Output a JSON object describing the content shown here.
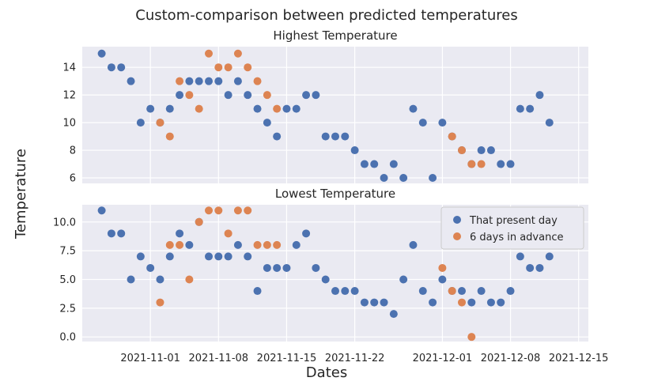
{
  "chart_data": {
    "type": "scatter",
    "title": "Custom-comparison between predicted temperatures",
    "xlabel": "Dates",
    "ylabel": "Temperature",
    "colors": {
      "present": "#4c72b0",
      "advance": "#dd8452",
      "background": "#eaeaf2",
      "grid": "#ffffff"
    },
    "legend": {
      "position": "top-right",
      "entries": [
        "That present day",
        "6 days in advance"
      ]
    },
    "x_ticks": [
      "2021-11-01",
      "2021-11-08",
      "2021-11-15",
      "2021-11-22",
      "2021-12-01",
      "2021-12-08",
      "2021-12-15"
    ],
    "x_range": [
      "2021-10-25",
      "2021-12-16"
    ],
    "panels": [
      {
        "title": "Highest Temperature",
        "ylim": [
          5.6,
          15.5
        ],
        "yticks": [
          "6",
          "8",
          "10",
          "12",
          "14"
        ],
        "series": [
          {
            "name": "That present day",
            "points": [
              [
                "2021-10-27",
                15
              ],
              [
                "2021-10-28",
                14
              ],
              [
                "2021-10-29",
                14
              ],
              [
                "2021-10-30",
                13
              ],
              [
                "2021-10-31",
                10
              ],
              [
                "2021-11-01",
                11
              ],
              [
                "2021-11-02",
                10
              ],
              [
                "2021-11-03",
                11
              ],
              [
                "2021-11-04",
                12
              ],
              [
                "2021-11-05",
                13
              ],
              [
                "2021-11-06",
                13
              ],
              [
                "2021-11-07",
                13
              ],
              [
                "2021-11-08",
                13
              ],
              [
                "2021-11-09",
                12
              ],
              [
                "2021-11-10",
                13
              ],
              [
                "2021-11-11",
                12
              ],
              [
                "2021-11-12",
                11
              ],
              [
                "2021-11-13",
                10
              ],
              [
                "2021-11-14",
                9
              ],
              [
                "2021-11-15",
                11
              ],
              [
                "2021-11-16",
                11
              ],
              [
                "2021-11-17",
                12
              ],
              [
                "2021-11-18",
                12
              ],
              [
                "2021-11-19",
                9
              ],
              [
                "2021-11-20",
                9
              ],
              [
                "2021-11-21",
                9
              ],
              [
                "2021-11-22",
                8
              ],
              [
                "2021-11-23",
                7
              ],
              [
                "2021-11-24",
                7
              ],
              [
                "2021-11-25",
                6
              ],
              [
                "2021-11-26",
                7
              ],
              [
                "2021-11-27",
                6
              ],
              [
                "2021-11-28",
                11
              ],
              [
                "2021-11-29",
                10
              ],
              [
                "2021-11-30",
                6
              ],
              [
                "2021-12-01",
                10
              ],
              [
                "2021-12-02",
                9
              ],
              [
                "2021-12-03",
                8
              ],
              [
                "2021-12-04",
                7
              ],
              [
                "2021-12-05",
                8
              ],
              [
                "2021-12-06",
                8
              ],
              [
                "2021-12-07",
                7
              ],
              [
                "2021-12-08",
                7
              ],
              [
                "2021-12-09",
                11
              ],
              [
                "2021-12-10",
                11
              ],
              [
                "2021-12-11",
                12
              ],
              [
                "2021-12-12",
                10
              ]
            ]
          },
          {
            "name": "6 days in advance",
            "points": [
              [
                "2021-11-02",
                10
              ],
              [
                "2021-11-03",
                9
              ],
              [
                "2021-11-04",
                13
              ],
              [
                "2021-11-05",
                12
              ],
              [
                "2021-11-06",
                11
              ],
              [
                "2021-11-07",
                15
              ],
              [
                "2021-11-08",
                14
              ],
              [
                "2021-11-09",
                14
              ],
              [
                "2021-11-10",
                15
              ],
              [
                "2021-11-11",
                14
              ],
              [
                "2021-11-12",
                13
              ],
              [
                "2021-11-13",
                12
              ],
              [
                "2021-11-14",
                11
              ],
              [
                "2021-12-02",
                9
              ],
              [
                "2021-12-03",
                8
              ],
              [
                "2021-12-04",
                7
              ],
              [
                "2021-12-05",
                7
              ]
            ]
          }
        ]
      },
      {
        "title": "Lowest Temperature",
        "ylim": [
          -0.4,
          11.5
        ],
        "yticks": [
          "0.0",
          "2.5",
          "5.0",
          "7.5",
          "10.0"
        ],
        "series": [
          {
            "name": "That present day",
            "points": [
              [
                "2021-10-27",
                11
              ],
              [
                "2021-10-28",
                9
              ],
              [
                "2021-10-29",
                9
              ],
              [
                "2021-10-30",
                5
              ],
              [
                "2021-10-31",
                7
              ],
              [
                "2021-11-01",
                6
              ],
              [
                "2021-11-02",
                5
              ],
              [
                "2021-11-03",
                7
              ],
              [
                "2021-11-04",
                9
              ],
              [
                "2021-11-05",
                8
              ],
              [
                "2021-11-06",
                10
              ],
              [
                "2021-11-07",
                7
              ],
              [
                "2021-11-08",
                7
              ],
              [
                "2021-11-09",
                7
              ],
              [
                "2021-11-10",
                8
              ],
              [
                "2021-11-11",
                7
              ],
              [
                "2021-11-12",
                4
              ],
              [
                "2021-11-13",
                6
              ],
              [
                "2021-11-14",
                6
              ],
              [
                "2021-11-15",
                6
              ],
              [
                "2021-11-16",
                8
              ],
              [
                "2021-11-17",
                9
              ],
              [
                "2021-11-18",
                6
              ],
              [
                "2021-11-19",
                5
              ],
              [
                "2021-11-20",
                4
              ],
              [
                "2021-11-21",
                4
              ],
              [
                "2021-11-22",
                4
              ],
              [
                "2021-11-23",
                3
              ],
              [
                "2021-11-24",
                3
              ],
              [
                "2021-11-25",
                3
              ],
              [
                "2021-11-26",
                2
              ],
              [
                "2021-11-27",
                5
              ],
              [
                "2021-11-28",
                8
              ],
              [
                "2021-11-29",
                4
              ],
              [
                "2021-11-30",
                3
              ],
              [
                "2021-12-01",
                5
              ],
              [
                "2021-12-02",
                4
              ],
              [
                "2021-12-03",
                4
              ],
              [
                "2021-12-04",
                3
              ],
              [
                "2021-12-05",
                4
              ],
              [
                "2021-12-06",
                3
              ],
              [
                "2021-12-07",
                3
              ],
              [
                "2021-12-08",
                4
              ],
              [
                "2021-12-09",
                7
              ],
              [
                "2021-12-10",
                6
              ],
              [
                "2021-12-11",
                6
              ],
              [
                "2021-12-12",
                7
              ]
            ]
          },
          {
            "name": "6 days in advance",
            "points": [
              [
                "2021-11-02",
                3
              ],
              [
                "2021-11-03",
                8
              ],
              [
                "2021-11-04",
                8
              ],
              [
                "2021-11-05",
                5
              ],
              [
                "2021-11-06",
                10
              ],
              [
                "2021-11-07",
                11
              ],
              [
                "2021-11-08",
                11
              ],
              [
                "2021-11-09",
                9
              ],
              [
                "2021-11-10",
                11
              ],
              [
                "2021-11-11",
                11
              ],
              [
                "2021-11-12",
                8
              ],
              [
                "2021-11-13",
                8
              ],
              [
                "2021-11-14",
                8
              ],
              [
                "2021-12-01",
                6
              ],
              [
                "2021-12-02",
                4
              ],
              [
                "2021-12-03",
                3
              ],
              [
                "2021-12-04",
                0
              ]
            ]
          }
        ]
      }
    ]
  }
}
